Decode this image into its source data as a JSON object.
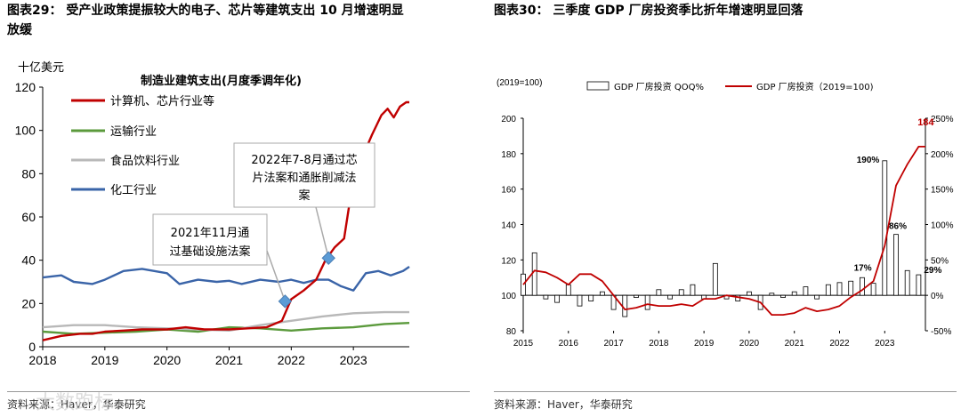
{
  "left": {
    "fig_title_line1": "图表29：  受产业政策提振较大的电子、芯片等建筑支出 10 月增速明显",
    "fig_title_line2": "放缓",
    "source": "资料来源：Haver，华泰研究",
    "watermark": "大数跑标",
    "annotation_1": [
      "2021年11月通",
      "过基础设施法案"
    ],
    "annotation_2": [
      "2022年7-8月通过芯",
      "片法案和通胀削减法",
      "案"
    ]
  },
  "right": {
    "fig_title": "图表30：  三季度 GDP 厂房投资季比折年增速明显回落",
    "source": "资料来源：Haver，华泰研究"
  },
  "colors": {
    "red": "#C00000",
    "green": "#5B9A3C",
    "gray": "#B8B8B8",
    "blue": "#3A64A8",
    "marker": "#5B9BD5"
  },
  "chart_data": [
    {
      "type": "line",
      "title": "制造业建筑支出(月度季调年化)",
      "ylabel": "十亿美元",
      "xlabel": "",
      "ylim": [
        0,
        120
      ],
      "yticks": [
        0,
        20,
        40,
        60,
        80,
        100,
        120
      ],
      "xlim": [
        2018,
        2023.9
      ],
      "xticks": [
        "2018",
        "2019",
        "2020",
        "2021",
        "2022",
        "2023"
      ],
      "legend_position": "top-left",
      "series": [
        {
          "name": "计算机、芯片行业等",
          "color": "#C00000",
          "x": [
            2018.0,
            2018.3,
            2018.6,
            2018.8,
            2019.0,
            2019.3,
            2019.6,
            2020.0,
            2020.3,
            2020.6,
            2021.0,
            2021.3,
            2021.6,
            2021.85,
            2022.0,
            2022.2,
            2022.4,
            2022.55,
            2022.7,
            2022.85,
            2023.0,
            2023.15,
            2023.3,
            2023.45,
            2023.55,
            2023.65,
            2023.75,
            2023.85,
            2023.9
          ],
          "y": [
            3,
            5,
            6,
            6,
            7,
            7.5,
            8,
            8,
            9,
            8,
            8,
            8.5,
            9,
            12,
            22,
            26,
            31,
            40,
            46,
            50,
            78,
            88,
            98,
            107,
            110,
            106,
            111,
            113,
            113
          ]
        },
        {
          "name": "运输行业",
          "color": "#5B9A3C",
          "x": [
            2018.0,
            2018.5,
            2019.0,
            2019.5,
            2020.0,
            2020.5,
            2021.0,
            2021.5,
            2022.0,
            2022.5,
            2023.0,
            2023.5,
            2023.9
          ],
          "y": [
            7,
            6,
            6.5,
            7,
            8,
            7,
            9,
            8.5,
            7.5,
            8.5,
            9,
            10.5,
            11
          ]
        },
        {
          "name": "食品饮料行业",
          "color": "#B8B8B8",
          "x": [
            2018.0,
            2018.5,
            2019.0,
            2019.5,
            2020.0,
            2020.5,
            2021.0,
            2021.5,
            2022.0,
            2022.5,
            2023.0,
            2023.5,
            2023.9
          ],
          "y": [
            9,
            10,
            10,
            9,
            8.5,
            8,
            7.5,
            10,
            12,
            14,
            15.5,
            16,
            16
          ]
        },
        {
          "name": "化工行业",
          "color": "#3A64A8",
          "x": [
            2018.0,
            2018.3,
            2018.5,
            2018.8,
            2019.0,
            2019.3,
            2019.6,
            2020.0,
            2020.2,
            2020.5,
            2020.8,
            2021.0,
            2021.2,
            2021.5,
            2021.8,
            2022.0,
            2022.2,
            2022.4,
            2022.6,
            2022.8,
            2023.0,
            2023.2,
            2023.4,
            2023.6,
            2023.8,
            2023.9
          ],
          "y": [
            32,
            33,
            30,
            29,
            31,
            35,
            36,
            34,
            29,
            31,
            30,
            30.5,
            29,
            31,
            30,
            31,
            29.5,
            31,
            31,
            28,
            26,
            34,
            35,
            33,
            35,
            37
          ]
        }
      ],
      "annotations": [
        {
          "text": "2021年11月通过基础设施法案",
          "x": 2021.9,
          "y": 21
        },
        {
          "text": "2022年7-8月通过芯片法案和通胀削减法案",
          "x": 2022.6,
          "y": 41
        }
      ]
    },
    {
      "type": "bar+line",
      "title": "",
      "ylabel_left": "(2019=100)",
      "ylim_left": [
        80,
        200
      ],
      "yticks_left": [
        80,
        100,
        120,
        140,
        160,
        180,
        200
      ],
      "ylim_right": [
        -50,
        250
      ],
      "yticks_right": [
        "-50%",
        "0%",
        "50%",
        "100%",
        "150%",
        "200%",
        "250%"
      ],
      "xlim": [
        2015,
        2023.9
      ],
      "xticks": [
        "2015",
        "2016",
        "2017",
        "2018",
        "2019",
        "2020",
        "2021",
        "2022",
        "2023"
      ],
      "legend": [
        "GDP 厂房投资 QOQ%",
        "GDP 厂房投资（2019=100)"
      ],
      "legend_position": "top",
      "bar_series": {
        "name": "GDP 厂房投资 QOQ%",
        "axis": "right",
        "x": [
          2015.0,
          2015.25,
          2015.5,
          2015.75,
          2016.0,
          2016.25,
          2016.5,
          2016.75,
          2017.0,
          2017.25,
          2017.5,
          2017.75,
          2018.0,
          2018.25,
          2018.5,
          2018.75,
          2019.0,
          2019.25,
          2019.5,
          2019.75,
          2020.0,
          2020.25,
          2020.5,
          2020.75,
          2021.0,
          2021.25,
          2021.5,
          2021.75,
          2022.0,
          2022.25,
          2022.5,
          2022.75,
          2023.0,
          2023.25,
          2023.5,
          2023.75
        ],
        "values": [
          30,
          60,
          -5,
          -10,
          15,
          -15,
          -8,
          5,
          -20,
          -30,
          -3,
          -20,
          8,
          -5,
          8,
          15,
          -5,
          45,
          -5,
          -8,
          5,
          -20,
          3,
          -3,
          5,
          12,
          -5,
          15,
          18,
          20,
          25,
          17,
          190,
          86,
          35,
          29
        ]
      },
      "line_series": {
        "name": "GDP 厂房投资（2019=100)",
        "axis": "left",
        "color": "#C00000",
        "x": [
          2015.0,
          2015.25,
          2015.5,
          2015.75,
          2016.0,
          2016.25,
          2016.5,
          2016.75,
          2017.0,
          2017.25,
          2017.5,
          2017.75,
          2018.0,
          2018.25,
          2018.5,
          2018.75,
          2019.0,
          2019.25,
          2019.5,
          2019.75,
          2020.0,
          2020.25,
          2020.5,
          2020.75,
          2021.0,
          2021.25,
          2021.5,
          2021.75,
          2022.0,
          2022.25,
          2022.5,
          2022.75,
          2023.0,
          2023.25,
          2023.5,
          2023.75,
          2023.9
        ],
        "values": [
          106,
          114,
          113,
          110,
          106,
          112,
          112,
          108,
          100,
          92,
          93,
          95,
          94,
          94,
          95,
          94,
          98,
          98,
          100,
          99,
          98,
          96,
          89,
          89,
          90,
          93,
          91,
          92,
          94,
          99,
          103,
          108,
          128,
          162,
          174,
          184,
          184
        ]
      },
      "bar_labels": [
        {
          "x": 2023.0,
          "text": "190%"
        },
        {
          "x": 2023.25,
          "text": "86%"
        },
        {
          "x": 2023.75,
          "text": "29%"
        },
        {
          "x": 2022.75,
          "text": "17%"
        }
      ],
      "end_label": "184"
    }
  ]
}
